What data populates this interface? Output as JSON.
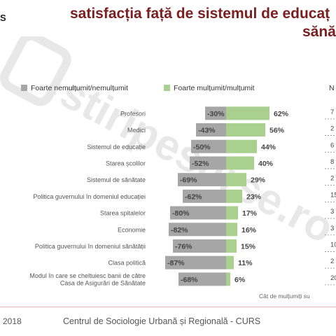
{
  "header": {
    "logo_letter": "S",
    "title_line1": "satisfacția față de sistemul de educaț",
    "title_line2": "sănă"
  },
  "watermark": {
    "text": "stiripesurse.ro"
  },
  "legend": {
    "negative_label": "Foarte nemulțumit/nemulțumit",
    "positive_label": "Foarte mulțumit/mulțumit",
    "right_partial": "N",
    "negative_color": "#a6a6a6",
    "positive_color": "#a9d08e"
  },
  "chart_data": {
    "type": "bar",
    "orientation": "horizontal-diverging",
    "categories": [
      "Profesori",
      "Medici",
      "Sistemul de educație",
      "Starea școlilor",
      "Sistemul de sănătate",
      "Politica guvernului în domeniul educației",
      "Starea spitalelor",
      "Economie",
      "Politica guvernului în domeniul sănătății",
      "Clasa politică",
      "Modul în care se cheltuiesc banii de către Casa de Asigurări de Sănătate"
    ],
    "series": [
      {
        "name": "Foarte nemulțumit/nemulțumit",
        "values": [
          -30,
          -43,
          -50,
          -52,
          -69,
          -62,
          -80,
          -82,
          -76,
          -87,
          -68
        ],
        "labels": [
          "-30%",
          "-43%",
          "-50%",
          "-52%",
          "-69%",
          "-62%",
          "-80%",
          "-82%",
          "-76%",
          "-87%",
          "-68%"
        ],
        "color": "#a6a6a6"
      },
      {
        "name": "Foarte mulțumit/mulțumit",
        "values": [
          62,
          56,
          44,
          40,
          29,
          23,
          17,
          16,
          15,
          11,
          6
        ],
        "labels": [
          "62%",
          "56%",
          "44%",
          "40%",
          "29%",
          "23%",
          "17%",
          "16%",
          "15%",
          "11%",
          "6%"
        ],
        "color": "#a9d08e"
      }
    ],
    "right_column_partial": [
      "7",
      "2",
      "6",
      "8",
      "2",
      "15",
      "3",
      "3",
      "10",
      "2",
      "20"
    ]
  },
  "footnote": "Cât de mulțumiți su",
  "footer": {
    "year": "2018",
    "organization": "Centrul de Sociologie Urbană și Regională - CURS"
  }
}
